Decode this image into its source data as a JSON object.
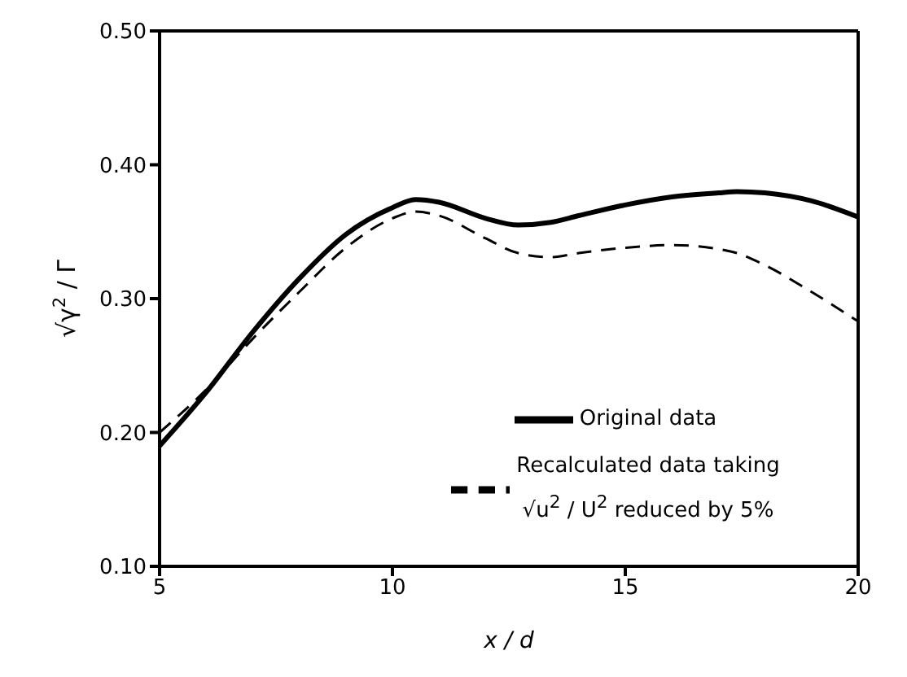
{
  "chart_data": {
    "type": "line",
    "xlabel": "x / d",
    "ylabel": "√γ$^{2}$ / Γ",
    "x": [
      5,
      6,
      7,
      8,
      9,
      10,
      10.5,
      11,
      12,
      12.7,
      13.4,
      14,
      15,
      16,
      17,
      17.4,
      18,
      19,
      20
    ],
    "series": [
      {
        "name": "Original data",
        "color": "#000000",
        "line_style": "solid",
        "values": [
          0.19,
          0.23,
          0.275,
          0.315,
          0.348,
          0.368,
          0.374,
          0.372,
          0.36,
          0.355,
          0.357,
          0.362,
          0.37,
          0.376,
          0.379,
          0.38,
          0.379,
          0.373,
          0.361
        ]
      },
      {
        "name": "Recalculated data taking\n√u$^{2}$ / U$^{2}$ reduced by 5%",
        "color": "#000000",
        "line_style": "dashed",
        "values": [
          0.2,
          0.232,
          0.27,
          0.305,
          0.338,
          0.36,
          0.365,
          0.362,
          0.345,
          0.334,
          0.331,
          0.334,
          0.338,
          0.34,
          0.337,
          0.334,
          0.325,
          0.305,
          0.283
        ]
      }
    ],
    "xlim": [
      5,
      20
    ],
    "xticks": [
      5,
      10,
      15,
      20
    ],
    "ylim": [
      0.1,
      0.5
    ],
    "yticks": [
      {
        "value": 0.1,
        "label": "0.10"
      },
      {
        "value": 0.2,
        "label": "0.20"
      },
      {
        "value": 0.3,
        "label": "0.30"
      },
      {
        "value": 0.4,
        "label": "0.40"
      },
      {
        "value": 0.5,
        "label": "0.50"
      }
    ],
    "grid": false,
    "legend": "bottom right",
    "marker": "none"
  }
}
